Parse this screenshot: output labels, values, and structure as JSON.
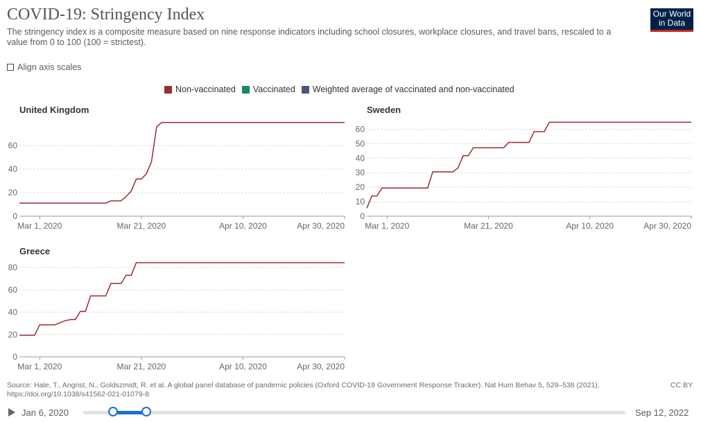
{
  "header": {
    "title": "COVID-19: Stringency Index",
    "subtitle": "The stringency index is a composite measure based on nine response indicators including school closures, workplace closures, and travel bans, rescaled to a value from 0 to 100 (100 = strictest).",
    "logo_line1": "Our World",
    "logo_line2": "in Data"
  },
  "controls": {
    "align_axis_label": "Align axis scales"
  },
  "legend": [
    {
      "label": "Non-vaccinated",
      "color": "#9a2c35"
    },
    {
      "label": "Vaccinated",
      "color": "#148a5e"
    },
    {
      "label": "Weighted average of vaccinated and non-vaccinated",
      "color": "#4a5778"
    }
  ],
  "chart_data": [
    {
      "type": "line",
      "title": "United Kingdom",
      "x_ticks": [
        "Mar 1, 2020",
        "Mar 21, 2020",
        "Apr 10, 2020",
        "Apr 30, 2020"
      ],
      "y_ticks": [
        0,
        20,
        40,
        60
      ],
      "ylim": [
        0,
        80
      ],
      "xlim": [
        "2020-02-26",
        "2020-04-30"
      ],
      "series": [
        {
          "name": "Non-vaccinated",
          "color": "#9a2c35",
          "points": [
            [
              "2020-02-26",
              11.1
            ],
            [
              "2020-03-14",
              11.1
            ],
            [
              "2020-03-15",
              13.0
            ],
            [
              "2020-03-17",
              13.0
            ],
            [
              "2020-03-18",
              16.7
            ],
            [
              "2020-03-19",
              21.3
            ],
            [
              "2020-03-20",
              31.5
            ],
            [
              "2020-03-21",
              31.5
            ],
            [
              "2020-03-22",
              36.1
            ],
            [
              "2020-03-23",
              46.3
            ],
            [
              "2020-03-24",
              75.9
            ],
            [
              "2020-03-25",
              79.6
            ],
            [
              "2020-04-30",
              79.6
            ]
          ]
        }
      ]
    },
    {
      "type": "line",
      "title": "Sweden",
      "x_ticks": [
        "Mar 1, 2020",
        "Mar 21, 2020",
        "Apr 10, 2020",
        "Apr 30, 2020"
      ],
      "y_ticks": [
        0,
        10,
        20,
        30,
        40,
        50,
        60
      ],
      "ylim": [
        0,
        65
      ],
      "xlim": [
        "2020-02-26",
        "2020-04-30"
      ],
      "series": [
        {
          "name": "Non-vaccinated",
          "color": "#9a2c35",
          "points": [
            [
              "2020-02-26",
              5.6
            ],
            [
              "2020-02-27",
              13.9
            ],
            [
              "2020-02-28",
              13.9
            ],
            [
              "2020-02-29",
              19.4
            ],
            [
              "2020-03-09",
              19.4
            ],
            [
              "2020-03-10",
              30.6
            ],
            [
              "2020-03-14",
              30.6
            ],
            [
              "2020-03-15",
              33.3
            ],
            [
              "2020-03-16",
              41.7
            ],
            [
              "2020-03-17",
              41.7
            ],
            [
              "2020-03-18",
              47.2
            ],
            [
              "2020-03-24",
              47.2
            ],
            [
              "2020-03-25",
              50.9
            ],
            [
              "2020-03-29",
              50.9
            ],
            [
              "2020-03-30",
              58.3
            ],
            [
              "2020-04-01",
              58.3
            ],
            [
              "2020-04-02",
              64.8
            ],
            [
              "2020-04-30",
              64.8
            ]
          ]
        }
      ]
    },
    {
      "type": "line",
      "title": "Greece",
      "x_ticks": [
        "Mar 1, 2020",
        "Mar 21, 2020",
        "Apr 10, 2020",
        "Apr 30, 2020"
      ],
      "y_ticks": [
        0,
        20,
        40,
        60,
        80
      ],
      "ylim": [
        0,
        85
      ],
      "xlim": [
        "2020-02-26",
        "2020-04-30"
      ],
      "series": [
        {
          "name": "Non-vaccinated",
          "color": "#9a2c35",
          "points": [
            [
              "2020-02-26",
              19.4
            ],
            [
              "2020-02-29",
              19.4
            ],
            [
              "2020-03-01",
              28.7
            ],
            [
              "2020-03-04",
              28.7
            ],
            [
              "2020-03-05",
              30.6
            ],
            [
              "2020-03-06",
              32.4
            ],
            [
              "2020-03-07",
              33.3
            ],
            [
              "2020-03-08",
              33.3
            ],
            [
              "2020-03-09",
              40.7
            ],
            [
              "2020-03-10",
              40.7
            ],
            [
              "2020-03-11",
              54.6
            ],
            [
              "2020-03-14",
              54.6
            ],
            [
              "2020-03-15",
              65.7
            ],
            [
              "2020-03-17",
              65.7
            ],
            [
              "2020-03-18",
              73.1
            ],
            [
              "2020-03-19",
              73.1
            ],
            [
              "2020-03-20",
              84.3
            ],
            [
              "2020-04-30",
              84.3
            ]
          ]
        }
      ]
    }
  ],
  "footer": {
    "source": "Source: Hale, T., Angrist, N., Goldszmidt, R. et al. A global panel database of pandemic policies (Oxford COVID-19 Government Response Tracker). Nat Hum Behav 5, 529–538 (2021). https://doi.org/10.1038/s41562-021-01079-8",
    "license": "CC BY"
  },
  "timeline": {
    "start_label": "Jan 6, 2020",
    "end_label": "Sep 12, 2022"
  }
}
